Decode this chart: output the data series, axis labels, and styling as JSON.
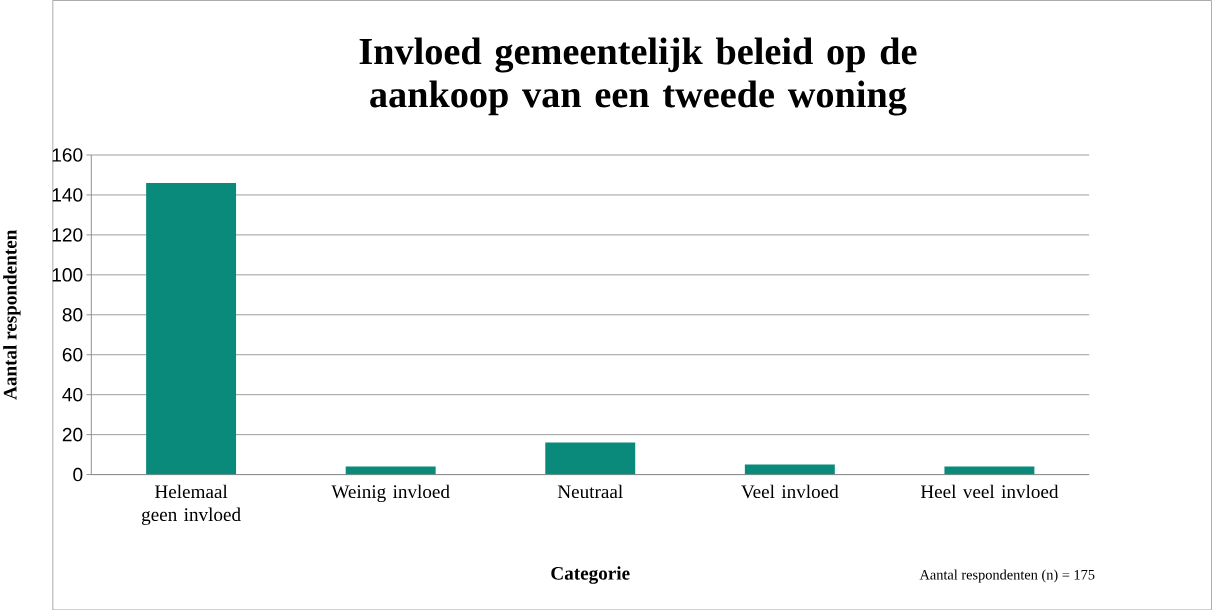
{
  "chart_data": {
    "type": "bar",
    "title": "Invloed gemeentelijk beleid op de aankoop van een tweede woning",
    "xlabel": "Categorie",
    "ylabel": "Aantal respondenten",
    "categories": [
      "Helemaal geen invloed",
      "Weinig invloed",
      "Neutraal",
      "Veel invloed",
      "Heel veel invloed"
    ],
    "values": [
      146,
      4,
      16,
      5,
      4
    ],
    "color": "#0a8a7a",
    "ylim": [
      0,
      160
    ],
    "yticks": [
      0,
      20,
      40,
      60,
      80,
      100,
      120,
      140,
      160
    ],
    "grid": "y",
    "annotations": [
      "Aantal respondenten (n) = 175"
    ]
  }
}
